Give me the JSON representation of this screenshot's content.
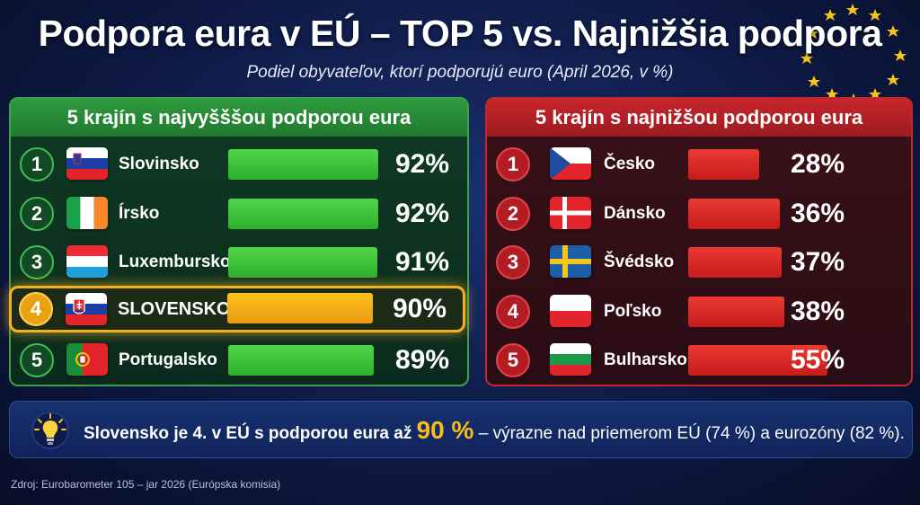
{
  "title": "Podpora eura v EÚ – TOP 5 vs. Najnižšia podpora",
  "subtitle": "Podiel obyvateľov, ktorí podporujú euro (April 2026, v %)",
  "colors": {
    "top": "#2fae2e",
    "bottom": "#c41c1c",
    "highlight": "#f2b21c",
    "background": "#0e1a45"
  },
  "chart_data": [
    {
      "type": "bar",
      "title": "5 krajín s najvyšššou podporou eura",
      "unit": "%",
      "ylim": [
        0,
        100
      ],
      "categories": [
        "Slovinsko",
        "Írsko",
        "Luxembursko",
        "SLOVENSKO",
        "Portugalsko"
      ],
      "values": [
        92,
        92,
        91,
        90,
        89
      ],
      "ranks": [
        "1",
        "2",
        "3",
        "4",
        "5"
      ],
      "labels": [
        "92%",
        "92%",
        "91%",
        "90%",
        "89%"
      ],
      "flags": [
        "slovenia",
        "ireland",
        "luxembourg",
        "slovakia",
        "portugal"
      ],
      "highlighted": "SLOVENSKO"
    },
    {
      "type": "bar",
      "title": "5 krajín s najnižšou podporou eura",
      "unit": "%",
      "ylim": [
        0,
        100
      ],
      "categories": [
        "Česko",
        "Dánsko",
        "Švédsko",
        "Poľsko",
        "Bulharsko"
      ],
      "values": [
        28,
        36,
        37,
        38,
        55
      ],
      "ranks": [
        "1",
        "2",
        "3",
        "4",
        "5"
      ],
      "labels": [
        "28%",
        "36%",
        "37%",
        "38%",
        "55%"
      ],
      "flags": [
        "czechia",
        "denmark",
        "sweden",
        "poland",
        "bulgaria"
      ]
    }
  ],
  "info": {
    "icon": "lightbulb-icon",
    "prefix": "Slovensko je 4. v EÚ s podporou eura až",
    "highlight": "90 %",
    "suffix": "– výrazne nad priemerom EÚ (74 %) a eurozóny (82 %)."
  },
  "source": "Zdroj: Eurobarometer 105 – jar 2026 (Európska komisia)"
}
